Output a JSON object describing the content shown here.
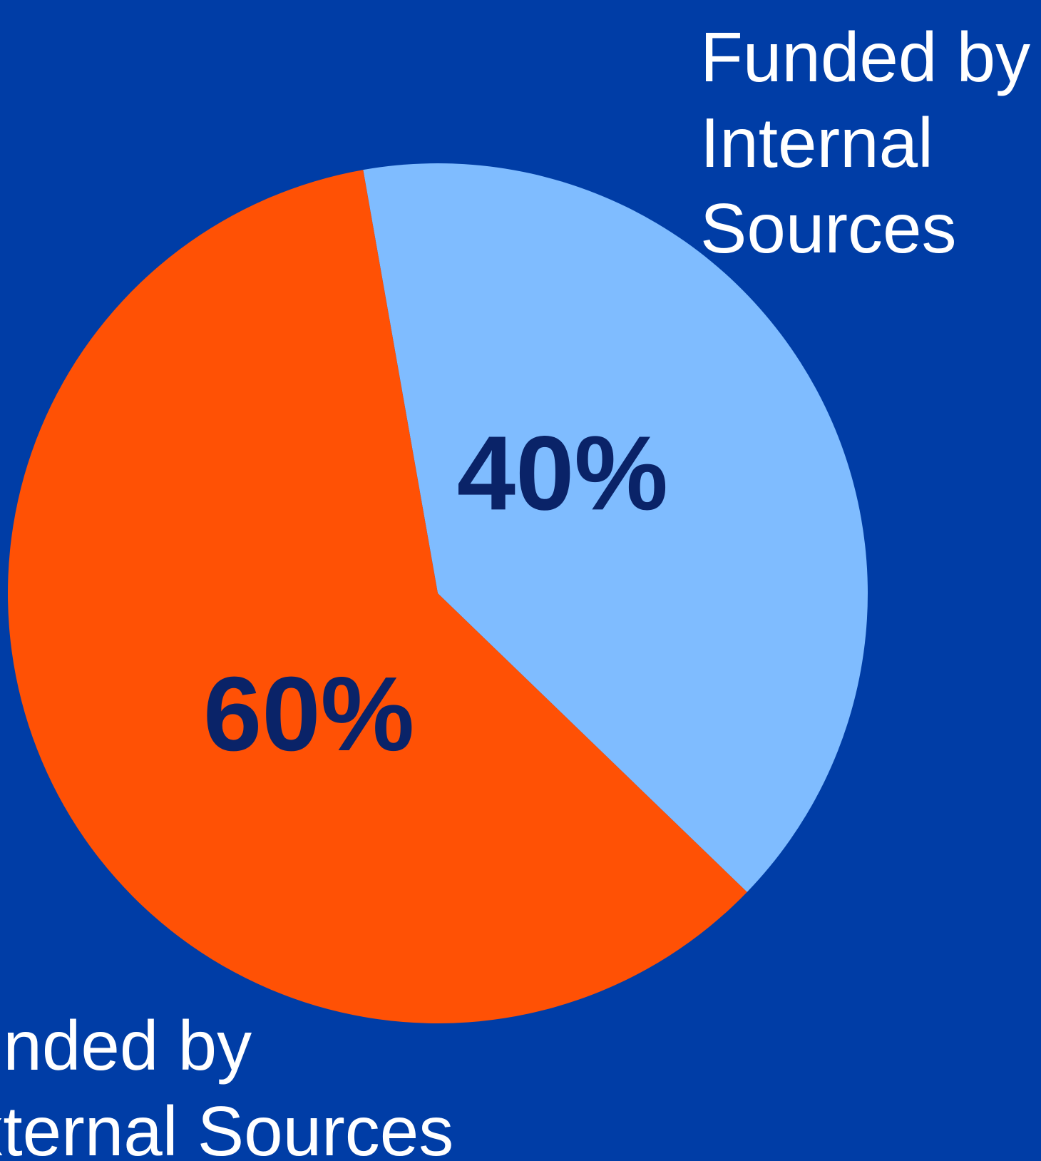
{
  "chart_data": {
    "type": "pie",
    "slices": [
      {
        "label": "Funded by Internal Sources",
        "value": 40,
        "value_label": "40%",
        "color": "#7fbcff"
      },
      {
        "label": "Funded by External Sources",
        "value": 60,
        "value_label": "60%",
        "color": "#ff5105"
      }
    ],
    "background_color": "#003da6",
    "value_label_color": "#0a2368",
    "category_label_color": "#ffffff"
  },
  "labels": {
    "internal": "Funded by\nInternal\nSources",
    "external": "Funded by\nExternal Sources"
  }
}
